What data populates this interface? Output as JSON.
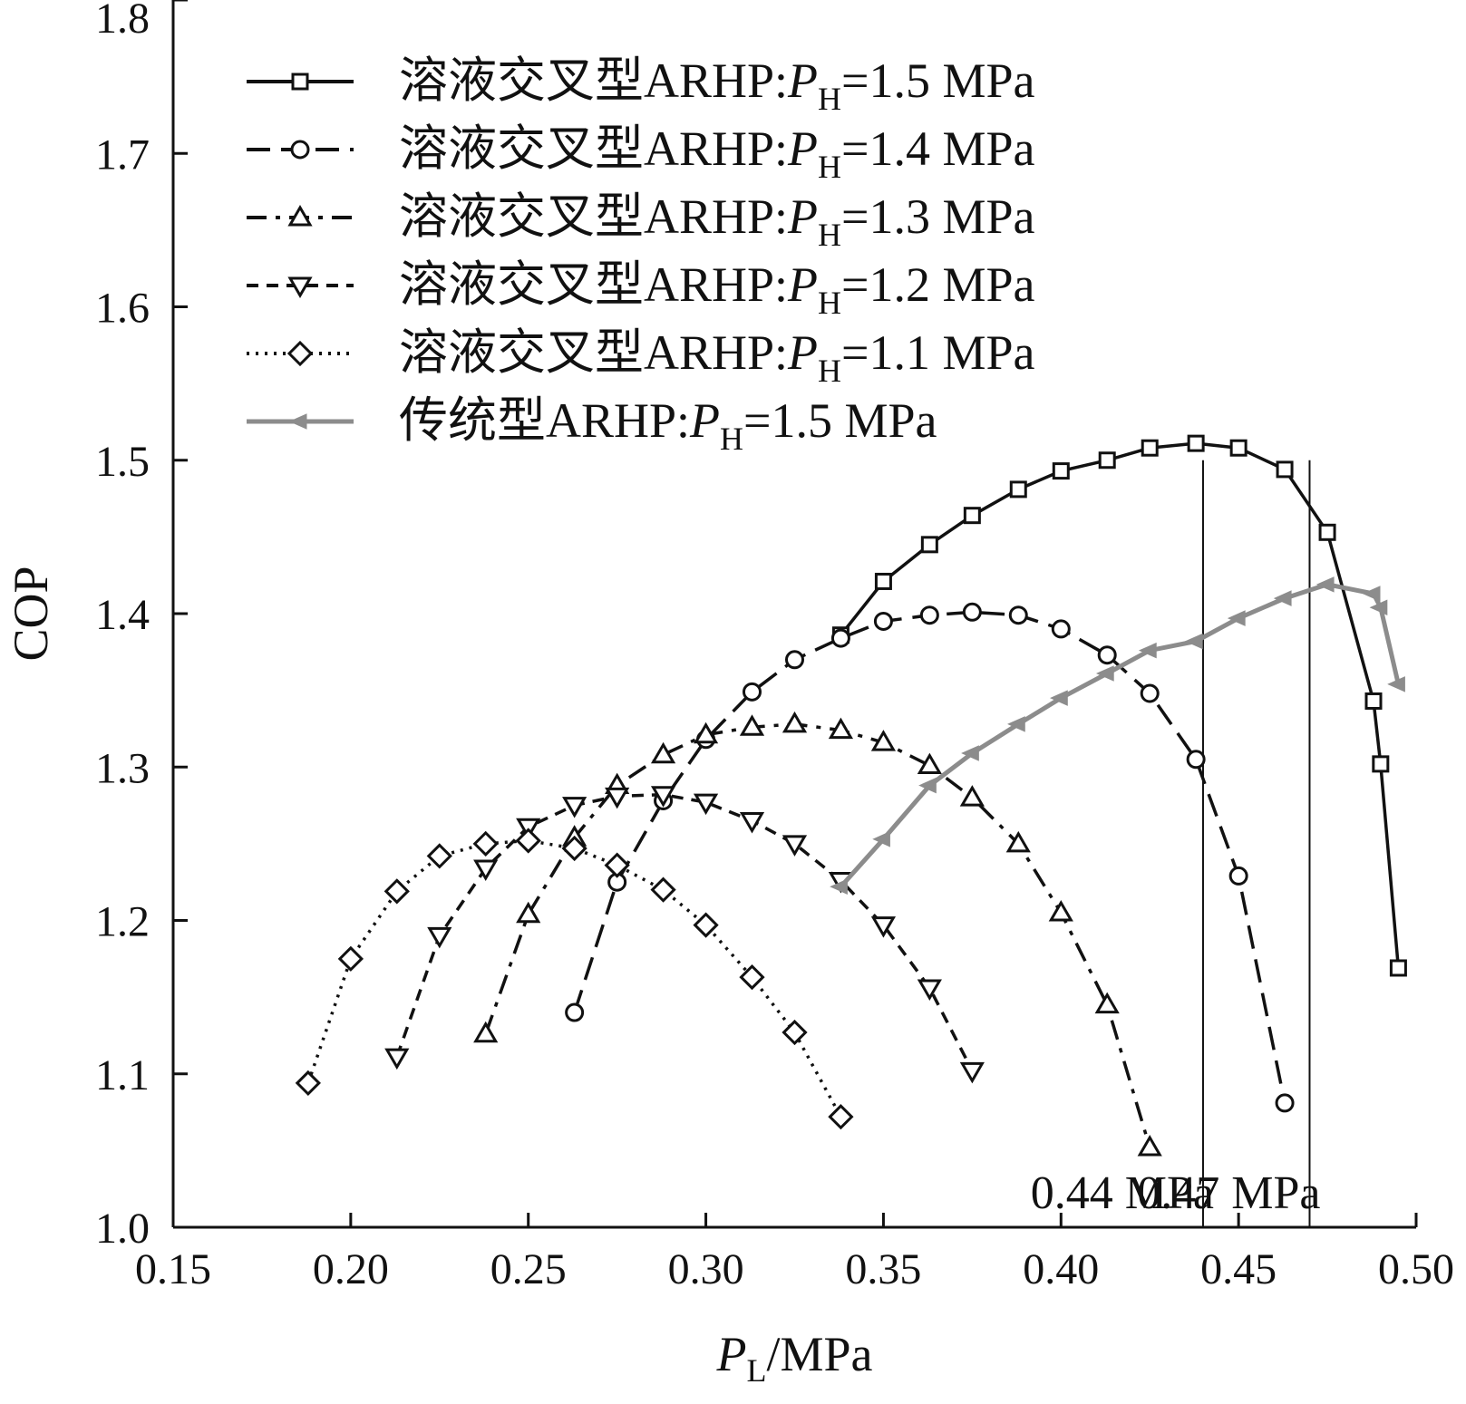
{
  "chart_data": {
    "type": "line",
    "title": "",
    "xlabel": {
      "symbol": "P",
      "subscript": "L",
      "unit": "/MPa"
    },
    "ylabel": "COP",
    "xlim": [
      0.15,
      0.5
    ],
    "ylim": [
      1.0,
      1.8
    ],
    "xticks": [
      0.15,
      0.2,
      0.25,
      0.3,
      0.35,
      0.4,
      0.45,
      0.5
    ],
    "xtick_labels": [
      "0.15",
      "0.20",
      "0.25",
      "0.30",
      "0.35",
      "0.40",
      "0.45",
      "0.50"
    ],
    "yticks": [
      1.0,
      1.1,
      1.2,
      1.3,
      1.4,
      1.5,
      1.6,
      1.7,
      1.8
    ],
    "ytick_labels": [
      "1.0",
      "1.1",
      "1.2",
      "1.3",
      "1.4",
      "1.5",
      "1.6",
      "1.7",
      "1.8"
    ],
    "grid": false,
    "legend_position": "top-left",
    "series": [
      {
        "name": "溶液交叉型ARHP:PH=1.5 MPa",
        "legend": {
          "prefix": "溶液交叉型ARHP:",
          "symbol": "P",
          "subscript": "H",
          "suffix": "=1.5 MPa"
        },
        "marker": "square",
        "dash": "solid",
        "color": "#111111",
        "x": [
          0.338,
          0.35,
          0.363,
          0.375,
          0.388,
          0.4,
          0.413,
          0.425,
          0.438,
          0.45,
          0.463,
          0.475,
          0.488,
          0.49,
          0.495
        ],
        "y": [
          1.386,
          1.421,
          1.445,
          1.464,
          1.481,
          1.493,
          1.5,
          1.508,
          1.511,
          1.508,
          1.494,
          1.453,
          1.343,
          1.302,
          1.169
        ]
      },
      {
        "name": "溶液交叉型ARHP:PH=1.4 MPa",
        "legend": {
          "prefix": "溶液交叉型ARHP:",
          "symbol": "P",
          "subscript": "H",
          "suffix": "=1.4 MPa"
        },
        "marker": "circle",
        "dash": "dash",
        "color": "#111111",
        "x": [
          0.263,
          0.275,
          0.288,
          0.3,
          0.313,
          0.325,
          0.338,
          0.35,
          0.363,
          0.375,
          0.388,
          0.4,
          0.413,
          0.425,
          0.438,
          0.45,
          0.463
        ],
        "y": [
          1.14,
          1.225,
          1.278,
          1.318,
          1.349,
          1.37,
          1.384,
          1.395,
          1.399,
          1.401,
          1.399,
          1.39,
          1.373,
          1.348,
          1.305,
          1.229,
          1.081
        ]
      },
      {
        "name": "溶液交叉型ARHP:PH=1.3 MPa",
        "legend": {
          "prefix": "溶液交叉型ARHP:",
          "symbol": "P",
          "subscript": "H",
          "suffix": "=1.3 MPa"
        },
        "marker": "triangle-up",
        "dash": "dashdot",
        "color": "#111111",
        "x": [
          0.238,
          0.25,
          0.263,
          0.275,
          0.288,
          0.3,
          0.313,
          0.325,
          0.338,
          0.35,
          0.363,
          0.375,
          0.388,
          0.4,
          0.413,
          0.425
        ],
        "y": [
          1.126,
          1.204,
          1.254,
          1.288,
          1.308,
          1.321,
          1.326,
          1.328,
          1.324,
          1.316,
          1.301,
          1.28,
          1.25,
          1.205,
          1.145,
          1.052
        ]
      },
      {
        "name": "溶液交叉型ARHP:PH=1.2 MPa",
        "legend": {
          "prefix": "溶液交叉型ARHP:",
          "symbol": "P",
          "subscript": "H",
          "suffix": "=1.2 MPa"
        },
        "marker": "triangle-down",
        "dash": "shortdash",
        "color": "#111111",
        "x": [
          0.213,
          0.225,
          0.238,
          0.25,
          0.263,
          0.275,
          0.288,
          0.3,
          0.313,
          0.325,
          0.338,
          0.35,
          0.363,
          0.375
        ],
        "y": [
          1.111,
          1.19,
          1.234,
          1.261,
          1.275,
          1.281,
          1.282,
          1.277,
          1.265,
          1.25,
          1.226,
          1.197,
          1.156,
          1.102
        ]
      },
      {
        "name": "溶液交叉型ARHP:PH=1.1 MPa",
        "legend": {
          "prefix": "溶液交叉型ARHP:",
          "symbol": "P",
          "subscript": "H",
          "suffix": "=1.1 MPa"
        },
        "marker": "diamond",
        "dash": "dotted",
        "color": "#111111",
        "x": [
          0.188,
          0.2,
          0.213,
          0.225,
          0.238,
          0.25,
          0.263,
          0.275,
          0.288,
          0.3,
          0.313,
          0.325,
          0.338
        ],
        "y": [
          1.094,
          1.175,
          1.219,
          1.242,
          1.25,
          1.252,
          1.247,
          1.236,
          1.22,
          1.197,
          1.163,
          1.127,
          1.072
        ]
      },
      {
        "name": "传统型ARHP:PH=1.5 MPa",
        "legend": {
          "prefix": "传统型ARHP:",
          "symbol": "P",
          "subscript": "H",
          "suffix": "=1.5 MPa"
        },
        "marker": "arrow-left",
        "dash": "solid",
        "color": "#8c8c8c",
        "x": [
          0.338,
          0.35,
          0.363,
          0.375,
          0.388,
          0.4,
          0.413,
          0.425,
          0.438,
          0.45,
          0.463,
          0.475,
          0.488,
          0.49,
          0.495
        ],
        "y": [
          1.222,
          1.253,
          1.288,
          1.309,
          1.328,
          1.345,
          1.361,
          1.376,
          1.382,
          1.397,
          1.41,
          1.419,
          1.413,
          1.404,
          1.354
        ]
      }
    ],
    "annotations": [
      {
        "label": "0.44 MPa",
        "x": 0.44
      },
      {
        "label": "0.47 MPa",
        "x": 0.47
      }
    ]
  }
}
